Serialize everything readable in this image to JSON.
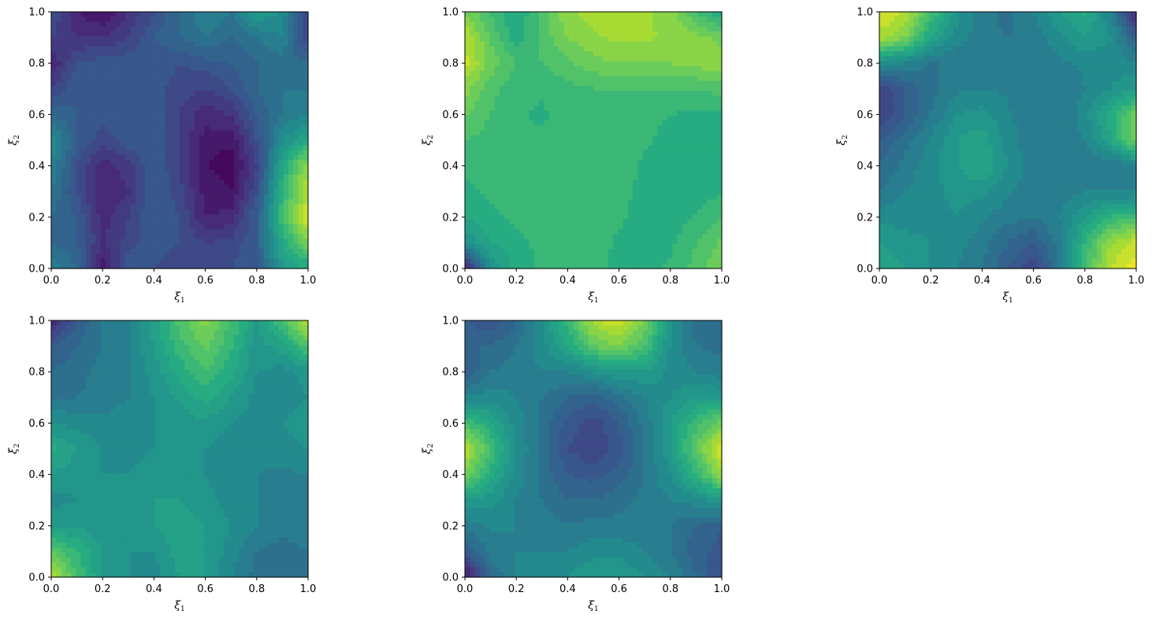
{
  "chart_data": [
    {
      "type": "heatmap",
      "subtype": "filled-contour",
      "colormap": "viridis",
      "xlabel": "ξ1",
      "ylabel": "ξ2",
      "xlim": [
        0,
        1
      ],
      "ylim": [
        0,
        1
      ],
      "xticks": [
        "0.0",
        "0.2",
        "0.4",
        "0.6",
        "0.8",
        "1.0"
      ],
      "yticks": [
        "0.0",
        "0.2",
        "0.4",
        "0.6",
        "0.8",
        "1.0"
      ],
      "grid": false,
      "x": [
        0,
        0.1,
        0.2,
        0.3,
        0.4,
        0.5,
        0.6,
        0.7,
        0.8,
        0.9,
        1.0
      ],
      "y": [
        0,
        0.1,
        0.2,
        0.3,
        0.4,
        0.5,
        0.6,
        0.7,
        0.8,
        0.9,
        1.0
      ],
      "z_normalized": [
        [
          0.45,
          0.35,
          0.05,
          0.3,
          0.25,
          0.2,
          0.2,
          0.25,
          0.3,
          0.55,
          0.6
        ],
        [
          0.35,
          0.3,
          0.15,
          0.22,
          0.3,
          0.25,
          0.2,
          0.22,
          0.3,
          0.6,
          0.8
        ],
        [
          0.35,
          0.3,
          0.12,
          0.2,
          0.3,
          0.25,
          0.1,
          0.12,
          0.3,
          0.7,
          0.95
        ],
        [
          0.4,
          0.25,
          0.1,
          0.15,
          0.3,
          0.22,
          0.08,
          0.05,
          0.25,
          0.65,
          0.9
        ],
        [
          0.45,
          0.25,
          0.12,
          0.18,
          0.3,
          0.2,
          0.05,
          0.02,
          0.2,
          0.6,
          0.85
        ],
        [
          0.5,
          0.3,
          0.22,
          0.28,
          0.3,
          0.2,
          0.08,
          0.06,
          0.25,
          0.5,
          0.6
        ],
        [
          0.35,
          0.3,
          0.28,
          0.3,
          0.28,
          0.2,
          0.12,
          0.15,
          0.3,
          0.4,
          0.45
        ],
        [
          0.2,
          0.3,
          0.3,
          0.3,
          0.28,
          0.22,
          0.2,
          0.25,
          0.35,
          0.4,
          0.4
        ],
        [
          0.1,
          0.25,
          0.28,
          0.28,
          0.28,
          0.25,
          0.28,
          0.3,
          0.35,
          0.38,
          0.35
        ],
        [
          0.2,
          0.15,
          0.15,
          0.2,
          0.3,
          0.35,
          0.4,
          0.35,
          0.4,
          0.45,
          0.2
        ],
        [
          0.25,
          0.1,
          0.05,
          0.15,
          0.25,
          0.35,
          0.45,
          0.4,
          0.55,
          0.5,
          0.2
        ]
      ]
    },
    {
      "type": "heatmap",
      "subtype": "filled-contour",
      "colormap": "viridis",
      "xlabel": "ξ1",
      "ylabel": "ξ2",
      "xlim": [
        0,
        1
      ],
      "ylim": [
        0,
        1
      ],
      "xticks": [
        "0.0",
        "0.2",
        "0.4",
        "0.6",
        "0.8",
        "1.0"
      ],
      "yticks": [
        "0.0",
        "0.2",
        "0.4",
        "0.6",
        "0.8",
        "1.0"
      ],
      "grid": false,
      "x": [
        0,
        0.1,
        0.2,
        0.3,
        0.4,
        0.5,
        0.6,
        0.7,
        0.8,
        0.9,
        1.0
      ],
      "y": [
        0,
        0.1,
        0.2,
        0.3,
        0.4,
        0.5,
        0.6,
        0.7,
        0.8,
        0.9,
        1.0
      ],
      "z_normalized": [
        [
          0.1,
          0.5,
          0.62,
          0.66,
          0.68,
          0.68,
          0.62,
          0.62,
          0.66,
          0.72,
          0.8
        ],
        [
          0.5,
          0.6,
          0.64,
          0.66,
          0.68,
          0.68,
          0.64,
          0.62,
          0.64,
          0.7,
          0.76
        ],
        [
          0.6,
          0.64,
          0.66,
          0.66,
          0.68,
          0.68,
          0.66,
          0.62,
          0.62,
          0.66,
          0.7
        ],
        [
          0.64,
          0.66,
          0.66,
          0.67,
          0.68,
          0.68,
          0.67,
          0.63,
          0.62,
          0.62,
          0.64
        ],
        [
          0.66,
          0.66,
          0.66,
          0.67,
          0.68,
          0.68,
          0.68,
          0.64,
          0.62,
          0.62,
          0.62
        ],
        [
          0.7,
          0.68,
          0.66,
          0.66,
          0.68,
          0.68,
          0.68,
          0.66,
          0.63,
          0.62,
          0.62
        ],
        [
          0.76,
          0.7,
          0.66,
          0.64,
          0.68,
          0.68,
          0.68,
          0.67,
          0.65,
          0.64,
          0.64
        ],
        [
          0.82,
          0.72,
          0.66,
          0.66,
          0.68,
          0.7,
          0.7,
          0.7,
          0.7,
          0.7,
          0.72
        ],
        [
          0.92,
          0.78,
          0.7,
          0.7,
          0.74,
          0.78,
          0.8,
          0.8,
          0.8,
          0.82,
          0.84
        ],
        [
          0.9,
          0.74,
          0.62,
          0.72,
          0.8,
          0.84,
          0.86,
          0.86,
          0.84,
          0.82,
          0.78
        ],
        [
          0.8,
          0.7,
          0.6,
          0.72,
          0.84,
          0.88,
          0.88,
          0.86,
          0.82,
          0.7,
          0.6
        ]
      ]
    },
    {
      "type": "heatmap",
      "subtype": "filled-contour",
      "colormap": "viridis",
      "xlabel": "ξ1",
      "ylabel": "ξ2",
      "xlim": [
        0,
        1
      ],
      "ylim": [
        0,
        1
      ],
      "xticks": [
        "0.0",
        "0.2",
        "0.4",
        "0.6",
        "0.8",
        "1.0"
      ],
      "yticks": [
        "0.0",
        "0.2",
        "0.4",
        "0.6",
        "0.8",
        "1.0"
      ],
      "grid": false,
      "x": [
        0,
        0.1,
        0.2,
        0.3,
        0.4,
        0.5,
        0.6,
        0.7,
        0.8,
        0.9,
        1.0
      ],
      "y": [
        0,
        0.1,
        0.2,
        0.3,
        0.4,
        0.5,
        0.6,
        0.7,
        0.8,
        0.9,
        1.0
      ],
      "z_normalized": [
        [
          0.6,
          0.55,
          0.5,
          0.45,
          0.4,
          0.3,
          0.2,
          0.4,
          0.7,
          0.9,
          0.98
        ],
        [
          0.55,
          0.52,
          0.5,
          0.48,
          0.42,
          0.35,
          0.3,
          0.42,
          0.65,
          0.85,
          0.92
        ],
        [
          0.48,
          0.48,
          0.48,
          0.5,
          0.46,
          0.42,
          0.4,
          0.45,
          0.55,
          0.65,
          0.7
        ],
        [
          0.4,
          0.45,
          0.48,
          0.52,
          0.52,
          0.46,
          0.42,
          0.42,
          0.45,
          0.45,
          0.45
        ],
        [
          0.35,
          0.42,
          0.48,
          0.55,
          0.6,
          0.5,
          0.42,
          0.4,
          0.4,
          0.4,
          0.45
        ],
        [
          0.3,
          0.38,
          0.46,
          0.55,
          0.58,
          0.48,
          0.4,
          0.4,
          0.45,
          0.6,
          0.8
        ],
        [
          0.2,
          0.3,
          0.4,
          0.5,
          0.52,
          0.46,
          0.4,
          0.4,
          0.48,
          0.62,
          0.78
        ],
        [
          0.2,
          0.3,
          0.38,
          0.44,
          0.45,
          0.44,
          0.4,
          0.4,
          0.45,
          0.5,
          0.55
        ],
        [
          0.5,
          0.45,
          0.4,
          0.4,
          0.4,
          0.42,
          0.42,
          0.44,
          0.46,
          0.48,
          0.45
        ],
        [
          0.88,
          0.8,
          0.6,
          0.48,
          0.42,
          0.4,
          0.42,
          0.48,
          0.55,
          0.5,
          0.3
        ],
        [
          0.96,
          0.9,
          0.7,
          0.52,
          0.42,
          0.38,
          0.45,
          0.55,
          0.62,
          0.45,
          0.1
        ]
      ]
    },
    {
      "type": "heatmap",
      "subtype": "filled-contour",
      "colormap": "viridis",
      "xlabel": "ξ1",
      "ylabel": "ξ2",
      "xlim": [
        0,
        1
      ],
      "ylim": [
        0,
        1
      ],
      "xticks": [
        "0.0",
        "0.2",
        "0.4",
        "0.6",
        "0.8",
        "1.0"
      ],
      "yticks": [
        "0.0",
        "0.2",
        "0.4",
        "0.6",
        "0.8",
        "1.0"
      ],
      "grid": false,
      "x": [
        0,
        0.1,
        0.2,
        0.3,
        0.4,
        0.5,
        0.6,
        0.7,
        0.8,
        0.9,
        1.0
      ],
      "y": [
        0,
        0.1,
        0.2,
        0.3,
        0.4,
        0.5,
        0.6,
        0.7,
        0.8,
        0.9,
        1.0
      ],
      "z_normalized": [
        [
          0.9,
          0.7,
          0.55,
          0.5,
          0.48,
          0.55,
          0.55,
          0.45,
          0.38,
          0.35,
          0.4
        ],
        [
          0.75,
          0.65,
          0.55,
          0.5,
          0.5,
          0.58,
          0.55,
          0.48,
          0.4,
          0.38,
          0.4
        ],
        [
          0.55,
          0.55,
          0.5,
          0.52,
          0.55,
          0.58,
          0.55,
          0.5,
          0.45,
          0.42,
          0.42
        ],
        [
          0.48,
          0.5,
          0.5,
          0.52,
          0.55,
          0.55,
          0.52,
          0.48,
          0.45,
          0.42,
          0.42
        ],
        [
          0.55,
          0.52,
          0.5,
          0.5,
          0.52,
          0.52,
          0.5,
          0.46,
          0.45,
          0.44,
          0.45
        ],
        [
          0.62,
          0.55,
          0.5,
          0.48,
          0.5,
          0.5,
          0.5,
          0.46,
          0.46,
          0.48,
          0.5
        ],
        [
          0.5,
          0.48,
          0.46,
          0.48,
          0.5,
          0.52,
          0.54,
          0.5,
          0.48,
          0.5,
          0.52
        ],
        [
          0.4,
          0.4,
          0.42,
          0.45,
          0.5,
          0.56,
          0.62,
          0.55,
          0.48,
          0.48,
          0.5
        ],
        [
          0.35,
          0.38,
          0.42,
          0.45,
          0.52,
          0.62,
          0.7,
          0.62,
          0.5,
          0.48,
          0.52
        ],
        [
          0.3,
          0.35,
          0.4,
          0.45,
          0.55,
          0.68,
          0.76,
          0.66,
          0.52,
          0.58,
          0.72
        ],
        [
          0.1,
          0.3,
          0.4,
          0.45,
          0.58,
          0.72,
          0.82,
          0.7,
          0.55,
          0.7,
          0.92
        ]
      ]
    },
    {
      "type": "heatmap",
      "subtype": "filled-contour",
      "colormap": "viridis",
      "xlabel": "ξ1",
      "ylabel": "ξ2",
      "xlim": [
        0,
        1
      ],
      "ylim": [
        0,
        1
      ],
      "xticks": [
        "0.0",
        "0.2",
        "0.4",
        "0.6",
        "0.8",
        "1.0"
      ],
      "yticks": [
        "0.0",
        "0.2",
        "0.4",
        "0.6",
        "0.8",
        "1.0"
      ],
      "grid": false,
      "x": [
        0,
        0.1,
        0.2,
        0.3,
        0.4,
        0.5,
        0.6,
        0.7,
        0.8,
        0.9,
        1.0
      ],
      "y": [
        0,
        0.1,
        0.2,
        0.3,
        0.4,
        0.5,
        0.6,
        0.7,
        0.8,
        0.9,
        1.0
      ],
      "z_normalized": [
        [
          0.05,
          0.35,
          0.45,
          0.48,
          0.5,
          0.55,
          0.55,
          0.5,
          0.45,
          0.35,
          0.25
        ],
        [
          0.3,
          0.42,
          0.45,
          0.45,
          0.45,
          0.48,
          0.48,
          0.45,
          0.4,
          0.32,
          0.28
        ],
        [
          0.42,
          0.46,
          0.45,
          0.42,
          0.4,
          0.42,
          0.42,
          0.42,
          0.4,
          0.35,
          0.3
        ],
        [
          0.55,
          0.52,
          0.45,
          0.4,
          0.35,
          0.35,
          0.38,
          0.42,
          0.45,
          0.48,
          0.55
        ],
        [
          0.8,
          0.62,
          0.48,
          0.38,
          0.3,
          0.28,
          0.32,
          0.4,
          0.5,
          0.65,
          0.85
        ],
        [
          0.9,
          0.7,
          0.5,
          0.38,
          0.25,
          0.2,
          0.28,
          0.4,
          0.55,
          0.75,
          0.95
        ],
        [
          0.7,
          0.6,
          0.48,
          0.38,
          0.28,
          0.22,
          0.3,
          0.42,
          0.55,
          0.68,
          0.78
        ],
        [
          0.45,
          0.48,
          0.45,
          0.4,
          0.35,
          0.32,
          0.38,
          0.45,
          0.5,
          0.55,
          0.55
        ],
        [
          0.3,
          0.4,
          0.42,
          0.45,
          0.45,
          0.5,
          0.55,
          0.55,
          0.48,
          0.45,
          0.42
        ],
        [
          0.35,
          0.35,
          0.4,
          0.48,
          0.6,
          0.75,
          0.8,
          0.7,
          0.5,
          0.4,
          0.38
        ],
        [
          0.3,
          0.25,
          0.35,
          0.5,
          0.68,
          0.88,
          0.95,
          0.8,
          0.52,
          0.38,
          0.35
        ]
      ]
    }
  ]
}
